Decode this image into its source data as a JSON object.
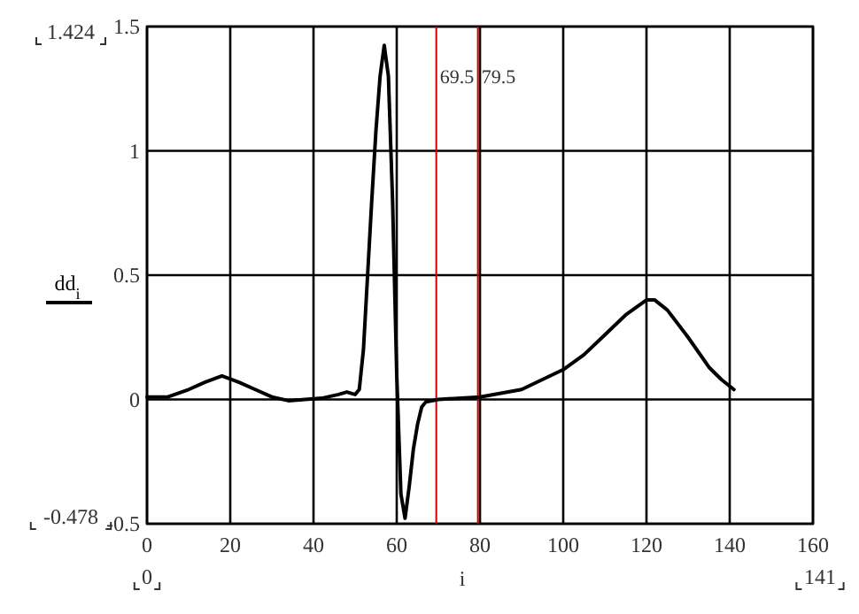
{
  "chart_data": {
    "type": "line",
    "xlabel": "i",
    "x": [
      0,
      5,
      10,
      14,
      18,
      22,
      26,
      30,
      34,
      38,
      42,
      46,
      48,
      50,
      51,
      52,
      53,
      54,
      55,
      56,
      57,
      58,
      59,
      60,
      61,
      62,
      63,
      64,
      65,
      66,
      67,
      70,
      80,
      90,
      100,
      105,
      110,
      115,
      120,
      122,
      125,
      130,
      135,
      138,
      141
    ],
    "series": [
      {
        "name": "dd$_{i}$",
        "color": "#000000",
        "values": [
          0.01,
          0.01,
          0.04,
          0.07,
          0.095,
          0.07,
          0.04,
          0.01,
          -0.005,
          0.0,
          0.005,
          0.02,
          0.03,
          0.02,
          0.04,
          0.2,
          0.5,
          0.8,
          1.08,
          1.3,
          1.424,
          1.3,
          0.8,
          0.1,
          -0.38,
          -0.478,
          -0.35,
          -0.2,
          -0.1,
          -0.03,
          -0.01,
          0.0,
          0.01,
          0.04,
          0.12,
          0.18,
          0.26,
          0.34,
          0.4,
          0.4,
          0.36,
          0.25,
          0.13,
          0.08,
          0.04
        ]
      }
    ],
    "xlim": [
      0,
      160
    ],
    "xticks": [
      0,
      20,
      40,
      60,
      80,
      100,
      120,
      140,
      160
    ],
    "ylim": [
      -0.5,
      1.5
    ],
    "yticks": [
      -0.5,
      0,
      0.5,
      1,
      1.5
    ],
    "ref_lines": [
      {
        "axis": "x",
        "value": 69.5,
        "label": "69.5",
        "color": "#cc0000"
      },
      {
        "axis": "x",
        "value": 79.5,
        "label": "79.5",
        "color": "#cc0000"
      }
    ],
    "annotations": [
      "1.424",
      "-0.478",
      "0",
      "141"
    ],
    "grid": true,
    "legend": "left",
    "marker": "none",
    "line_style": "solid"
  }
}
